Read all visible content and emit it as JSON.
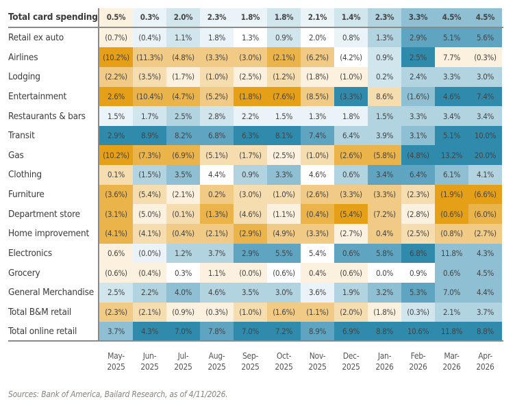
{
  "chart_data": {
    "type": "heatmap",
    "columns": [
      [
        "May-",
        "2025"
      ],
      [
        "Jun-",
        "2025"
      ],
      [
        "Jul-",
        "2025"
      ],
      [
        "Aug-",
        "2025"
      ],
      [
        "Sep-",
        "2025"
      ],
      [
        "Oct-",
        "2025"
      ],
      [
        "Nov-",
        "2025"
      ],
      [
        "Dec-",
        "2025"
      ],
      [
        "Jan-",
        "2026"
      ],
      [
        "Feb-",
        "2026"
      ],
      [
        "Mar-",
        "2026"
      ],
      [
        "Apr-",
        "2026"
      ]
    ],
    "rows": [
      {
        "label": "Total card spending",
        "values": [
          "0.5%",
          "0.3%",
          "2.0%",
          "2.3%",
          "1.8%",
          "1.8%",
          "2.1%",
          "1.4%",
          "2.3%",
          "3.3%",
          "4.5%",
          "4.5%"
        ],
        "levels": [
          -1,
          1,
          2,
          1,
          1,
          2,
          1,
          2,
          3,
          4,
          4,
          4
        ]
      },
      {
        "label": "Retail ex auto",
        "values": [
          "(0.7%)",
          "(0.4%)",
          "1.1%",
          "1.8%",
          "1.3%",
          "0.9%",
          "2.0%",
          "0.8%",
          "1.3%",
          "2.9%",
          "5.1%",
          "5.6%"
        ],
        "levels": [
          -1,
          1,
          2,
          1,
          0,
          2,
          0,
          1,
          3,
          5,
          5,
          5
        ]
      },
      {
        "label": "Airlines",
        "values": [
          "(10.2%)",
          "(11.3%)",
          "(4.8%)",
          "(3.3%)",
          "(3.0%)",
          "(2.1%)",
          "(6.2%)",
          "(4.2%)",
          "0.9%",
          "2.5%",
          "7.7%",
          "(0.3%)"
        ],
        "levels": [
          -5,
          -3,
          -3,
          -3,
          -3,
          -4,
          -3,
          0,
          2,
          6,
          -1,
          -1
        ]
      },
      {
        "label": "Lodging",
        "values": [
          "(2.2%)",
          "(3.5%)",
          "(1.7%)",
          "(1.0%)",
          "(2.5%)",
          "(1.2%)",
          "(1.8%)",
          "(1.0%)",
          "0.2%",
          "2.4%",
          "3.3%",
          "3.0%"
        ],
        "levels": [
          -3,
          -2,
          -1,
          -2,
          -1,
          -2,
          -1,
          -1,
          2,
          3,
          3,
          3
        ]
      },
      {
        "label": "Entertainment",
        "values": [
          "2.6%",
          "(10.4%)",
          "(4.7%)",
          "(5.2%)",
          "(1.8%)",
          "(7.6%)",
          "(8.5%)",
          "(3.3%)",
          "8.6%",
          "(1.6%)",
          "4.6%",
          "7.4%"
        ],
        "levels": [
          -5,
          -4,
          -4,
          -3,
          -5,
          -5,
          -3,
          6,
          -2,
          4,
          6,
          6
        ]
      },
      {
        "label": "Restaurants & bars",
        "values": [
          "1.5%",
          "1.7%",
          "2.5%",
          "2.8%",
          "2.2%",
          "1.5%",
          "1.3%",
          "1.8%",
          "1.5%",
          "3.3%",
          "3.4%",
          "3.4%"
        ],
        "levels": [
          1,
          2,
          3,
          2,
          1,
          1,
          1,
          1,
          3,
          3,
          3,
          3
        ]
      },
      {
        "label": "Transit",
        "values": [
          "2.9%",
          "8.9%",
          "8.2%",
          "6.8%",
          "6.3%",
          "8.1%",
          "7.4%",
          "6.4%",
          "3.9%",
          "3.1%",
          "5.1%",
          "10.0%"
        ],
        "levels": [
          6,
          6,
          5,
          5,
          6,
          6,
          5,
          3,
          3,
          4,
          6,
          6
        ]
      },
      {
        "label": "Gas",
        "values": [
          "(10.2%)",
          "(7.3%)",
          "(6.9%)",
          "(5.1%)",
          "(1.7%)",
          "(2.5%)",
          "(1.0%)",
          "(2.6%)",
          "(5.8%)",
          "(4.8%)",
          "13.2%",
          "20.0%"
        ],
        "levels": [
          -5,
          -4,
          -4,
          -2,
          -2,
          -1,
          -2,
          -4,
          -4,
          6,
          6,
          6
        ]
      },
      {
        "label": "Clothing",
        "values": [
          "0.1%",
          "(1.5%)",
          "3.5%",
          "4.4%",
          "0.9%",
          "3.3%",
          "4.6%",
          "0.6%",
          "3.4%",
          "6.4%",
          "6.1%",
          "4.1%"
        ],
        "levels": [
          -2,
          3,
          4,
          0,
          3,
          4,
          0,
          3,
          5,
          5,
          4,
          3
        ]
      },
      {
        "label": "Furniture",
        "values": [
          "(3.6%)",
          "(5.4%)",
          "(2.1%)",
          "0.2%",
          "(3.0%)",
          "(1.0%)",
          "(2.6%)",
          "(3.3%)",
          "(3.3%)",
          "(2.3%)",
          "(1.9%)",
          "(6.6%)"
        ],
        "levels": [
          -4,
          -2,
          -1,
          -3,
          -2,
          -2,
          -3,
          -3,
          -3,
          -2,
          -5,
          -5
        ]
      },
      {
        "label": "Department store",
        "values": [
          "(3.1%)",
          "(5.0%)",
          "(0.1%)",
          "(1.3%)",
          "(4.6%)",
          "(1.1%)",
          "(0.4%)",
          "(5.4%)",
          "(7.2%)",
          "(2.8%)",
          "(0.6%)",
          "(6.0%)"
        ],
        "levels": [
          -4,
          -1,
          -2,
          -4,
          -2,
          -1,
          -4,
          -5,
          -3,
          -1,
          -5,
          -4
        ]
      },
      {
        "label": "Home improvement",
        "values": [
          "(4.1%)",
          "(4.1%)",
          "(0.4%)",
          "(2.1%)",
          "(2.9%)",
          "(4.9%)",
          "(3.3%)",
          "(2.7%)",
          "0.4%",
          "(2.5%)",
          "(0.8%)",
          "(2.7%)"
        ],
        "levels": [
          -4,
          -2,
          -3,
          -3,
          -4,
          -3,
          -3,
          -1,
          -3,
          -2,
          -3,
          -3
        ]
      },
      {
        "label": "Electronics",
        "values": [
          "0.6%",
          "(0.0%)",
          "1.2%",
          "3.7%",
          "2.9%",
          "5.5%",
          "5.4%",
          "0.6%",
          "5.8%",
          "6.8%",
          "11.8%",
          "4.3%"
        ],
        "levels": [
          -1,
          1,
          3,
          3,
          5,
          5,
          0,
          5,
          5,
          6,
          4,
          4
        ]
      },
      {
        "label": "Grocery",
        "values": [
          "(0.6%)",
          "(0.4%)",
          "0.3%",
          "1.1%",
          "(0.0%)",
          "(0.6%)",
          "0.4%",
          "(0.6%)",
          "0.0%",
          "0.9%",
          "0.6%",
          "4.5%"
        ],
        "levels": [
          -1,
          -1,
          0,
          -1,
          -1,
          0,
          -1,
          -1,
          0,
          0,
          4,
          4
        ]
      },
      {
        "label": "General Merchandise",
        "values": [
          "2.5%",
          "2.2%",
          "4.0%",
          "4.6%",
          "3.5%",
          "3.0%",
          "3.6%",
          "1.9%",
          "3.2%",
          "5.3%",
          "7.0%",
          "4.4%"
        ],
        "levels": [
          2,
          3,
          4,
          3,
          3,
          3,
          1,
          3,
          4,
          5,
          4,
          4
        ]
      },
      {
        "label": "Total B&M retail",
        "values": [
          "(2.3%)",
          "(2.1%)",
          "(0.9%)",
          "(0.3%)",
          "(1.0%)",
          "(1.6%)",
          "(1.1%)",
          "(2.0%)",
          "(1.8%)",
          "(0.3%)",
          "2.1%",
          "3.7%"
        ],
        "levels": [
          -3,
          -2,
          -1,
          -1,
          -2,
          -3,
          -3,
          -2,
          -1,
          2,
          3,
          3
        ]
      },
      {
        "label": "Total online retail",
        "values": [
          "3.7%",
          "4.3%",
          "7.0%",
          "7.8%",
          "7.0%",
          "7.2%",
          "8.9%",
          "6.9%",
          "8.8%",
          "10.6%",
          "11.8%",
          "8.8%"
        ],
        "levels": [
          4,
          6,
          6,
          5,
          6,
          6,
          5,
          6,
          6,
          6,
          6,
          6
        ]
      }
    ],
    "palette": {
      "-5": "#e5a017",
      "-4": "#ebb44b",
      "-3": "#f1cb85",
      "-2": "#f6ddb0",
      "-1": "#fcf1de",
      "0": "#ffffff",
      "1": "#eaf3f7",
      "2": "#d1e5ed",
      "3": "#b2d3e0",
      "4": "#8ebfd2",
      "5": "#5fa5c1",
      "6": "#2f8aac"
    }
  },
  "source": "Sources: Bank of America, Bailard Research, as of 4/11/2026."
}
